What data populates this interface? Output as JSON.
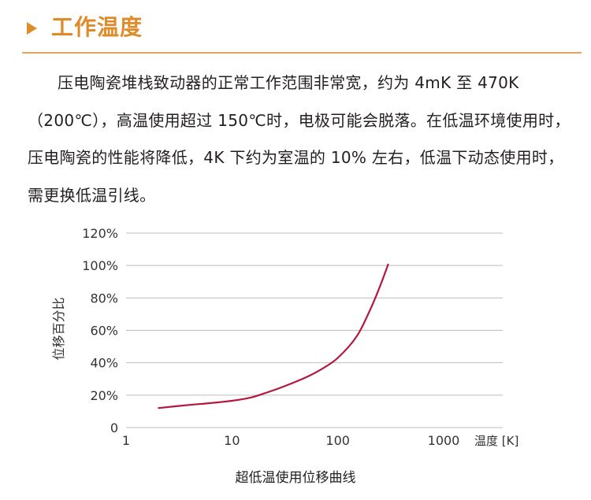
{
  "section": {
    "title": "工作温度",
    "paragraph": "压电陶瓷堆栈致动器的正常工作范围非常宽，约为 4mK 至 470K（200℃），高温使用超过 150℃时，电极可能会脱落。在低温环境使用时，压电陶瓷的性能将降低，4K 下约为室温的 10% 左右，低温下动态使用时，需更换低温引线。"
  },
  "colors": {
    "accent": "#e08b2a",
    "rule": "#e0a45a",
    "curve": "#b3183c",
    "grid": "#bdbdbd"
  },
  "chart_data": {
    "type": "line",
    "caption": "超低温使用位移曲线",
    "ylabel": "位移百分比",
    "xlabel": "温度 [K]",
    "xscale": "log",
    "xlim": [
      1,
      2000
    ],
    "ylim": [
      0,
      120
    ],
    "xticks": [
      1,
      10,
      100,
      1000
    ],
    "xtick_labels": [
      "1",
      "10",
      "100",
      "1000"
    ],
    "yticks": [
      0,
      20,
      40,
      60,
      80,
      100,
      120
    ],
    "ytick_labels": [
      "0",
      "20%",
      "40%",
      "60%",
      "80%",
      "100%",
      "120%"
    ],
    "grid": "horizontal",
    "series": [
      {
        "x": [
          2,
          4,
          6,
          10,
          15,
          20,
          30,
          50,
          70,
          100,
          150,
          200,
          250,
          300
        ],
        "y": [
          12,
          14,
          15,
          16.5,
          18.5,
          21,
          25,
          31,
          36,
          43,
          56,
          72,
          87,
          101
        ]
      }
    ]
  }
}
